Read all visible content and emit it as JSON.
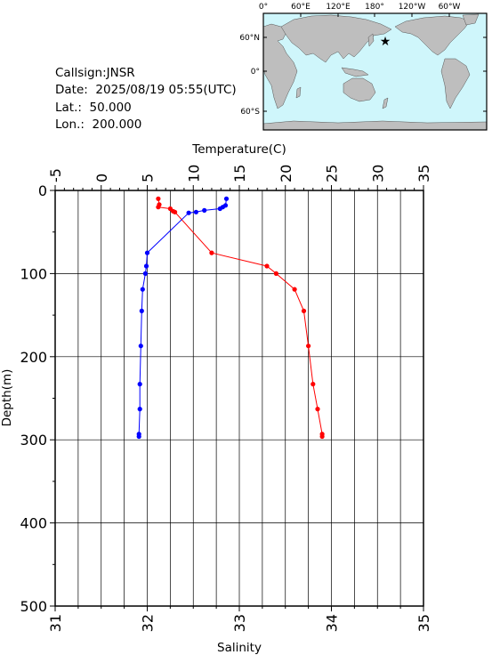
{
  "info": {
    "callsign": "Callsign:JNSR",
    "date": "Date:  2025/08/19 05:55(UTC)",
    "lat": "Lat.:  50.000",
    "lon": "Lon.:  200.000"
  },
  "map": {
    "top_ticks": [
      "0°",
      "60°E",
      "120°E",
      "180°",
      "120°W",
      "60°W"
    ],
    "left_ticks": [
      "60°N",
      "0°",
      "60°S"
    ],
    "ocean_color": "#cff6fb",
    "land_color": "#bebebe",
    "marker_color": "#ff0000",
    "marker_icon": "star-icon"
  },
  "chart_data": {
    "type": "line",
    "xlabel_top": "Temperature(C)",
    "xlabel_bottom": "Salinity",
    "ylabel": "Depth(m)",
    "temperature_ticks": [
      "-5",
      "0",
      "5",
      "10",
      "15",
      "20",
      "25",
      "30",
      "35"
    ],
    "salinity_ticks": [
      "31",
      "32",
      "33",
      "34",
      "35"
    ],
    "depth_ticks": [
      "0",
      "100",
      "200",
      "300",
      "400",
      "500"
    ],
    "temperature_range": [
      -5,
      35
    ],
    "salinity_range": [
      31,
      35
    ],
    "depth_range": [
      0,
      500
    ],
    "grid": true,
    "series": [
      {
        "axis": "temperature",
        "color": "#ff0000",
        "points": [
          {
            "depth": 10,
            "value": 6.2
          },
          {
            "depth": 17,
            "value": 6.3
          },
          {
            "depth": 20,
            "value": 6.2
          },
          {
            "depth": 22,
            "value": 7.5
          },
          {
            "depth": 25,
            "value": 7.8
          },
          {
            "depth": 26,
            "value": 8.0
          },
          {
            "depth": 75,
            "value": 12.0
          },
          {
            "depth": 91,
            "value": 18.0
          },
          {
            "depth": 100,
            "value": 19.0
          },
          {
            "depth": 119,
            "value": 21.0
          },
          {
            "depth": 145,
            "value": 22.0
          },
          {
            "depth": 187,
            "value": 22.5
          },
          {
            "depth": 233,
            "value": 23.0
          },
          {
            "depth": 263,
            "value": 23.5
          },
          {
            "depth": 293,
            "value": 24.0
          },
          {
            "depth": 296,
            "value": 24.0
          }
        ]
      },
      {
        "axis": "salinity",
        "color": "#0000ff",
        "points": [
          {
            "depth": 10,
            "value": 32.86
          },
          {
            "depth": 18,
            "value": 32.85
          },
          {
            "depth": 20,
            "value": 32.82
          },
          {
            "depth": 22,
            "value": 32.79
          },
          {
            "depth": 24,
            "value": 32.62
          },
          {
            "depth": 26,
            "value": 32.53
          },
          {
            "depth": 27,
            "value": 32.45
          },
          {
            "depth": 75,
            "value": 32.0
          },
          {
            "depth": 91,
            "value": 31.99
          },
          {
            "depth": 100,
            "value": 31.98
          },
          {
            "depth": 119,
            "value": 31.95
          },
          {
            "depth": 145,
            "value": 31.94
          },
          {
            "depth": 187,
            "value": 31.93
          },
          {
            "depth": 233,
            "value": 31.92
          },
          {
            "depth": 263,
            "value": 31.92
          },
          {
            "depth": 293,
            "value": 31.91
          },
          {
            "depth": 296,
            "value": 31.91
          }
        ]
      }
    ]
  }
}
